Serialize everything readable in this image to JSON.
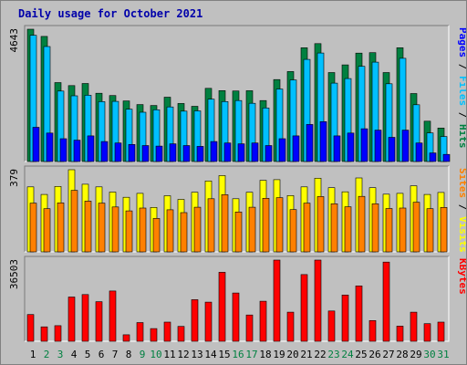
{
  "chart_data": {
    "type": "bar",
    "title": "Daily usage for October 2021",
    "days": [
      "1",
      "2",
      "3",
      "4",
      "5",
      "6",
      "7",
      "8",
      "9",
      "10",
      "11",
      "12",
      "13",
      "14",
      "15",
      "16",
      "17",
      "18",
      "19",
      "20",
      "21",
      "22",
      "23",
      "24",
      "25",
      "26",
      "27",
      "28",
      "29",
      "30",
      "31"
    ],
    "weekend_days": [
      "2",
      "3",
      "9",
      "10",
      "16",
      "17",
      "23",
      "24",
      "30",
      "31"
    ],
    "colors": {
      "hits": "#008040",
      "files": "#00c0ff",
      "pages": "#0000ff",
      "visits": "#ffff00",
      "sites": "#ff8000",
      "kbytes": "#ff0000",
      "weekday_label": "#000000",
      "weekend_label": "#008040",
      "title": "#0000aa",
      "panel_bg": "#c0c0c0"
    },
    "panels": [
      {
        "id": "hits_files_pages",
        "max_label": "4643",
        "ylim": [
          0,
          4643
        ],
        "legend": [
          "Pages",
          "Files",
          "Hits"
        ],
        "legend_colors": [
          "#0000ff",
          "#00c0ff",
          "#008040"
        ],
        "series": [
          {
            "name": "Hits",
            "color": "#008040",
            "values": [
              4643,
              4389,
              2770,
              2665,
              2737,
              2396,
              2316,
              2125,
              1999,
              1967,
              2256,
              2035,
              1936,
              2568,
              2488,
              2476,
              2485,
              2139,
              2876,
              3156,
              3994,
              4138,
              3123,
              3390,
              3804,
              3820,
              3123,
              3993,
              2385,
              1415,
              1176
            ]
          },
          {
            "name": "Files",
            "color": "#00c0ff",
            "values": [
              4430,
              4035,
              2471,
              2307,
              2326,
              2101,
              2109,
              1835,
              1728,
              1815,
              1916,
              1768,
              1777,
              2188,
              2104,
              2140,
              2044,
              1879,
              2541,
              2863,
              3583,
              3808,
              2749,
              2911,
              3339,
              3488,
              2729,
              3623,
              1993,
              1003,
              876
            ]
          },
          {
            "name": "Pages",
            "color": "#0000ff",
            "values": [
              1200,
              1000,
              800,
              750,
              900,
              700,
              650,
              600,
              560,
              540,
              620,
              560,
              530,
              700,
              650,
              620,
              650,
              560,
              800,
              900,
              1300,
              1400,
              900,
              1000,
              1150,
              1100,
              850,
              1100,
              650,
              300,
              250
            ]
          }
        ]
      },
      {
        "id": "visits_sites",
        "max_label": "379",
        "ylim": [
          0,
          379
        ],
        "legend": [
          "Sites",
          "Visits"
        ],
        "legend_colors": [
          "#ff8000",
          "#ffff00"
        ],
        "series": [
          {
            "name": "Visits",
            "color": "#ffff00",
            "values": [
              300,
              265,
              302,
              379,
              312,
              300,
              276,
              252,
              270,
              205,
              259,
              242,
              275,
              327,
              352,
              245,
              275,
              330,
              333,
              260,
              300,
              340,
              296,
              277,
              341,
              296,
              266,
              270,
              305,
              265,
              274
            ]
          },
          {
            "name": "Sites",
            "color": "#ff8000",
            "values": [
              225,
              199,
              226,
              284,
              234,
              225,
              207,
              189,
              202,
              154,
              194,
              181,
              206,
              245,
              264,
              184,
              206,
              247,
              250,
              195,
              225,
              255,
              222,
              208,
              256,
              222,
              200,
              202,
              229,
              199,
              205
            ]
          }
        ]
      },
      {
        "id": "kbytes",
        "max_label": "36503",
        "ylim": [
          0,
          36503
        ],
        "legend": [
          "KBytes"
        ],
        "legend_colors": [
          "#ff0000"
        ],
        "series": [
          {
            "name": "KBytes",
            "color": "#ff0000",
            "values": [
              12000,
              6500,
              7000,
              19900,
              21000,
              17800,
              22600,
              2900,
              8400,
              5700,
              8600,
              6700,
              18700,
              17600,
              31000,
              21700,
              11800,
              18000,
              36503,
              13100,
              30000,
              36503,
              13600,
              20800,
              24900,
              9300,
              35600,
              6800,
              13100,
              7900,
              8600
            ]
          }
        ]
      }
    ]
  }
}
